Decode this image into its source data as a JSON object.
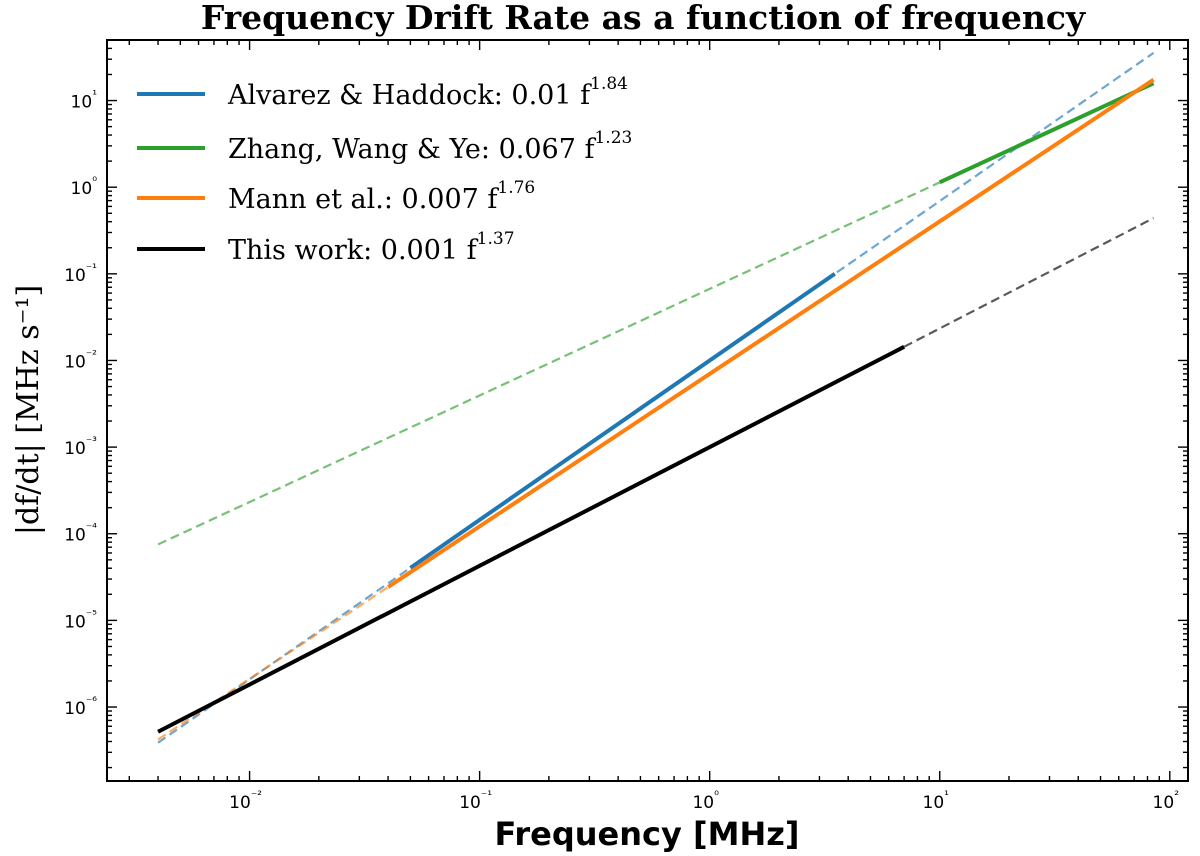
{
  "chart_data": {
    "type": "line",
    "title": "Frequency Drift Rate as a function of frequency",
    "xlabel": "Frequency [MHz]",
    "ylabel": "|df/dt| [MHz s⁻¹]",
    "xscale": "log",
    "yscale": "log",
    "xlim": [
      0.0024,
      120
    ],
    "ylim": [
      1.4e-07,
      50
    ],
    "x_ticks": [
      "10⁻²",
      "10⁻¹",
      "10⁰",
      "10¹",
      "10²"
    ],
    "y_ticks": [
      "10⁻⁶",
      "10⁻⁵",
      "10⁻⁴",
      "10⁻³",
      "10⁻²",
      "10⁻¹",
      "10⁰",
      "10¹"
    ],
    "grid": false,
    "legend_position": "top-left",
    "series": [
      {
        "name": "Alvarez & Haddock: 0.01 f^1.84",
        "label_text": "Alvarez & Haddock: 0.01 f",
        "exponent": "1.84",
        "color": "#1f77b4",
        "coef": 0.01,
        "power": 1.84,
        "solid_range": [
          0.05,
          3.5
        ],
        "dashed_range": [
          0.004,
          85
        ]
      },
      {
        "name": "Zhang, Wang & Ye: 0.067 f^1.23",
        "label_text": "Zhang, Wang & Ye: 0.067 f",
        "exponent": "1.23",
        "color": "#2ca02c",
        "coef": 0.067,
        "power": 1.23,
        "solid_range": [
          10,
          85
        ],
        "dashed_range": [
          0.004,
          10
        ]
      },
      {
        "name": "Mann et al.: 0.007 f^1.76",
        "label_text": "Mann et al.: 0.007 f",
        "exponent": "1.76",
        "color": "#ff7f0e",
        "coef": 0.007,
        "power": 1.76,
        "solid_range": [
          0.04,
          85
        ],
        "dashed_range": [
          0.004,
          0.04
        ]
      },
      {
        "name": "This work: 0.001 f^1.37",
        "label_text": "This work: 0.001 f",
        "exponent": "1.37",
        "color": "#000000",
        "coef": 0.001,
        "power": 1.37,
        "solid_range": [
          0.004,
          7
        ],
        "dashed_range": [
          7,
          85
        ]
      }
    ]
  }
}
